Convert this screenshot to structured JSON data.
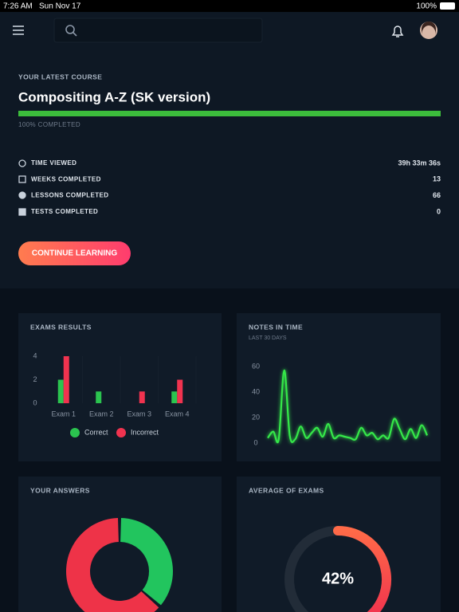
{
  "status_bar": {
    "time": "7:26 AM",
    "date": "Sun Nov 17",
    "battery": "100%"
  },
  "course": {
    "label": "YOUR LATEST COURSE",
    "title": "Compositing A-Z (SK version)",
    "progress": 100,
    "lim": [
      0,
      100
    ],
    "progress_label": "100% COMPLETED"
  },
  "stats": [
    {
      "label": "TIME VIEWED",
      "value": "39h 33m 36s"
    },
    {
      "label": "WEEKS COMPLETED",
      "value": 13
    },
    {
      "label": "LESSONS COMPLETED",
      "value": 66
    },
    {
      "label": "TESTS COMPLETED",
      "value": 0
    }
  ],
  "button": "CONTINUE LEARNING",
  "exam_results": {
    "type": "bar",
    "title": "EXAMS RESULTS",
    "categories": [
      "Exam 1",
      "Exam 2",
      "Exam 3",
      "Exam 4"
    ],
    "series": [
      {
        "name": "Correct",
        "color": "#2bc44f",
        "values": [
          2,
          1,
          0,
          1
        ]
      },
      {
        "name": "Incorrect",
        "color": "#f0334f",
        "values": [
          4,
          0,
          1,
          2
        ]
      }
    ],
    "ylim": [
      0,
      4
    ],
    "yticks": [
      0,
      2,
      4
    ]
  },
  "notes_in_time": {
    "type": "line",
    "title": "NOTES IN TIME",
    "subtitle": "LAST 30 DAYS",
    "color": "#35e84a",
    "values": [
      4,
      9,
      3,
      57,
      6,
      3,
      13,
      4,
      8,
      12,
      5,
      15,
      4,
      6,
      5,
      4,
      3,
      12,
      6,
      8,
      3,
      6,
      4,
      19,
      11,
      3,
      11,
      4,
      14,
      6
    ],
    "ylim": [
      0,
      60
    ],
    "yticks": [
      0,
      20,
      40,
      60
    ]
  },
  "your_answers": {
    "type": "donut",
    "title": "YOUR ANSWERS",
    "values": [
      4,
      7
    ],
    "colors": [
      "#22c55e",
      "#ee3348"
    ]
  },
  "average_of_exams": {
    "type": "gauge",
    "title": "AVERAGE OF EXAMS",
    "value": 42,
    "value_label": "42%",
    "lim": [
      0,
      100
    ]
  }
}
